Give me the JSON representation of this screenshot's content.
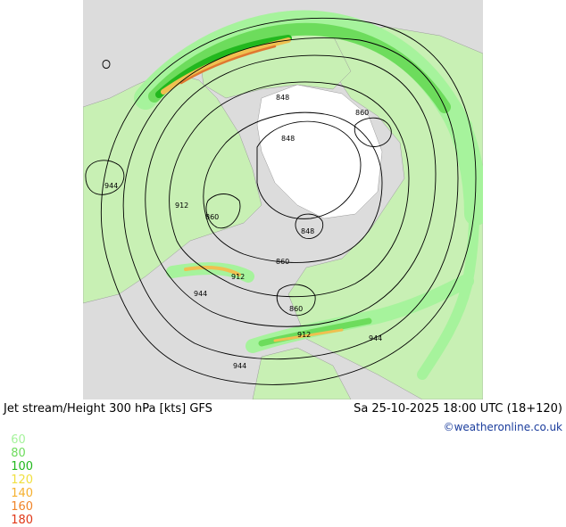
{
  "header": {
    "title": "Jet stream/Height 300 hPa [kts] GFS",
    "valid_time": "Sa 25-10-2025 18:00 UTC (18+120)"
  },
  "legend": {
    "values": [
      "60",
      "80",
      "100",
      "120",
      "140",
      "160",
      "180"
    ],
    "colors": [
      "#a6f39c",
      "#6ddc5c",
      "#22b81e",
      "#f0e040",
      "#f5b030",
      "#f08428",
      "#e03818"
    ]
  },
  "credit": "©weatheronline.co.uk",
  "contour_labels": [
    "848",
    "848",
    "848",
    "860",
    "860",
    "860",
    "860",
    "912",
    "912",
    "912",
    "944",
    "944",
    "944",
    "944"
  ],
  "colors": {
    "ocean": "#dcdcdc",
    "land": "#c8f0b4",
    "ice": "#ffffff",
    "jet_light": "#a6f39c",
    "jet_mid": "#6ddc5c",
    "jet_strong": "#22b81e",
    "jet_max": "#f0c050"
  }
}
